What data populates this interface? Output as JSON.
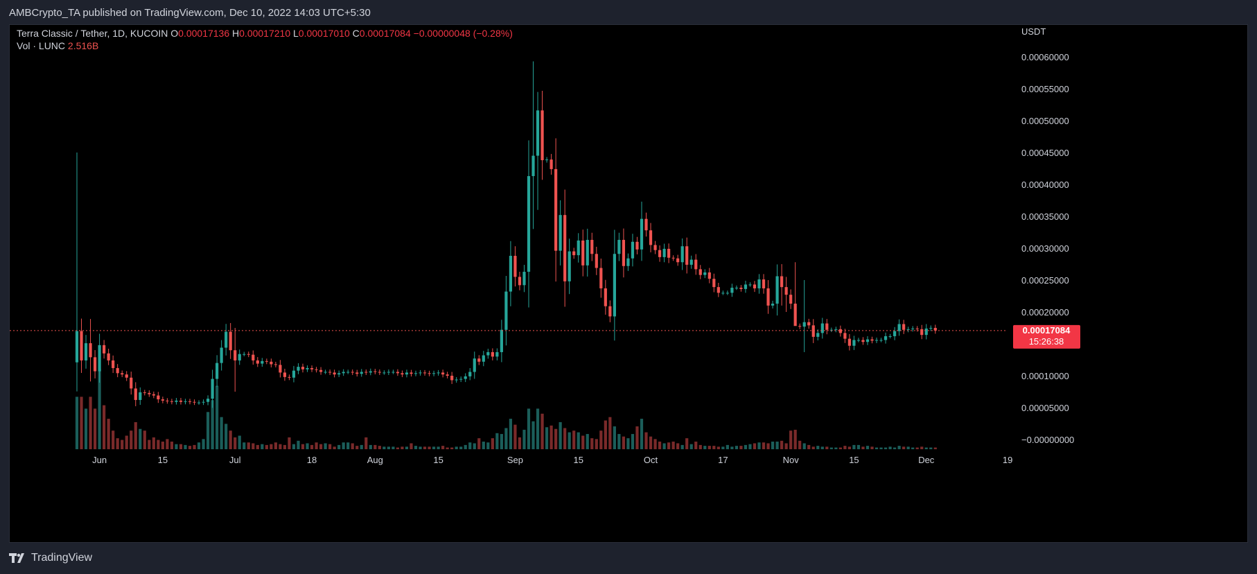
{
  "header": {
    "publisher_text": "AMBCrypto_TA published on TradingView.com, Dec 10, 2022 14:03 UTC+5:30"
  },
  "legend": {
    "symbol": "Terra Classic / Tether, 1D, KUCOIN",
    "o_label": "O",
    "o_value": "0.00017136",
    "h_label": "H",
    "h_value": "0.00017210",
    "l_label": "L",
    "l_value": "0.00017010",
    "c_label": "C",
    "c_value": "0.00017084",
    "change": "−0.00000048 (−0.28%)",
    "vol_label": "Vol · LUNC",
    "vol_value": "2.516B"
  },
  "price_badge": {
    "price": "0.00017084",
    "countdown": "15:26:38"
  },
  "footer": {
    "brand": "TradingView"
  },
  "colors": {
    "up": "#26a69a",
    "down": "#ef5350",
    "up_volume": "#1b5e5a",
    "down_volume": "#7a2a2a",
    "background": "#000000",
    "badge": "#f23645"
  },
  "chart_data": {
    "type": "candlestick",
    "currency_label": "USDT",
    "y_ticks": [
      "0.00060000",
      "0.00055000",
      "0.00050000",
      "0.00045000",
      "0.00040000",
      "0.00035000",
      "0.00030000",
      "0.00025000",
      "0.00020000",
      "0.00010000",
      "0.00005000",
      "−0.00000000"
    ],
    "y_tick_values": [
      0.0006,
      0.00055,
      0.0005,
      0.00045,
      0.0004,
      0.00035,
      0.0003,
      0.00025,
      0.0002,
      0.0001,
      5e-05,
      0.0
    ],
    "ylim": [
      0.0,
      0.00061
    ],
    "x_ticks": [
      {
        "label": "Jun",
        "day": 5
      },
      {
        "label": "15",
        "day": 19
      },
      {
        "label": "Jul",
        "day": 35
      },
      {
        "label": "18",
        "day": 52
      },
      {
        "label": "Aug",
        "day": 66
      },
      {
        "label": "15",
        "day": 80
      },
      {
        "label": "Sep",
        "day": 97
      },
      {
        "label": "15",
        "day": 111
      },
      {
        "label": "Oct",
        "day": 127
      },
      {
        "label": "17",
        "day": 143
      },
      {
        "label": "Nov",
        "day": 158
      },
      {
        "label": "15",
        "day": 172
      },
      {
        "label": "Dec",
        "day": 188
      },
      {
        "label": "19",
        "day": 206
      }
    ],
    "close": [
      0.00017,
      0.000124,
      0.000151,
      0.000129,
      0.000107,
      0.000148,
      0.000135,
      0.000124,
      0.000112,
      0.000104,
      0.000102,
      9.7e-05,
      8e-05,
      6.2e-05,
      7.4e-05,
      7.3e-05,
      7.1e-05,
      6.9e-05,
      6.3e-05,
      6.1e-05,
      6e-05,
      5.9e-05,
      6.1e-05,
      5.9e-05,
      6e-05,
      5.9e-05,
      5.8e-05,
      5.8e-05,
      5.9e-05,
      6.4e-05,
      9.5e-05,
      0.00012,
      0.000144,
      0.000169,
      0.00014,
      0.000124,
      0.000134,
      0.000134,
      0.000133,
      0.000124,
      0.000119,
      0.000123,
      0.000122,
      0.000118,
      0.000117,
      0.000105,
      9.8e-05,
      9.7e-05,
      0.000108,
      0.000114,
      0.00011,
      0.000112,
      0.00011,
      0.000109,
      0.000106,
      0.000106,
      0.000105,
      0.000102,
      0.000104,
      0.000106,
      0.000106,
      0.000105,
      0.000103,
      0.000106,
      0.000105,
      0.000107,
      0.000106,
      0.000105,
      0.000105,
      0.000106,
      0.000106,
      0.000104,
      0.000102,
      0.000105,
      0.000103,
      0.000104,
      0.000105,
      0.000104,
      0.000103,
      0.000104,
      0.000105,
      0.000102,
      0.0001,
      9.3e-05,
      9.4e-05,
      9.5e-05,
      9.9e-05,
      0.000106,
      0.000127,
      0.000122,
      0.000132,
      0.000137,
      0.00013,
      0.000137,
      0.000172,
      0.000232,
      0.000288,
      0.000255,
      0.000242,
      0.000263,
      0.000413,
      0.000445,
      0.000516,
      0.000438,
      0.000439,
      0.000424,
      0.000296,
      0.000352,
      0.000248,
      0.000295,
      0.000289,
      0.000312,
      0.000273,
      0.000313,
      0.000291,
      0.000269,
      0.000237,
      0.000209,
      0.000193,
      0.000291,
      0.000313,
      0.000272,
      0.000284,
      0.00031,
      0.000298,
      0.000346,
      0.000328,
      0.000305,
      0.000297,
      0.000286,
      0.000299,
      0.000285,
      0.000284,
      0.000278,
      0.000303,
      0.000274,
      0.000282,
      0.000267,
      0.000258,
      0.000262,
      0.000252,
      0.000239,
      0.00023,
      0.00023,
      0.00023,
      0.000238,
      0.000238,
      0.000236,
      0.000243,
      0.000243,
      0.000237,
      0.000251,
      0.000237,
      0.00021,
      0.000213,
      0.000256,
      0.000239,
      0.000227,
      0.000213,
      0.000178,
      0.000177,
      0.000184,
      0.000179,
      0.000161,
      0.000167,
      0.000182,
      0.000172,
      0.000172,
      0.000173,
      0.000167,
      0.000158,
      0.000147,
      0.000156,
      0.000156,
      0.000153,
      0.000157,
      0.000155,
      0.000156,
      0.000156,
      0.000162,
      0.000162,
      0.00017,
      0.000181,
      0.000172,
      0.000173,
      0.000174,
      0.000173,
      0.000164,
      0.000174,
      0.000175,
      0.00017084
    ],
    "volume": [
      0.62,
      0.62,
      0.48,
      0.62,
      0.48,
      0.95,
      0.52,
      0.36,
      0.22,
      0.13,
      0.11,
      0.16,
      0.22,
      0.32,
      0.24,
      0.22,
      0.11,
      0.14,
      0.11,
      0.09,
      0.12,
      0.09,
      0.06,
      0.06,
      0.05,
      0.04,
      0.05,
      0.08,
      0.12,
      0.44,
      0.58,
      0.75,
      0.38,
      0.3,
      0.22,
      0.14,
      0.16,
      0.08,
      0.08,
      0.07,
      0.05,
      0.06,
      0.05,
      0.06,
      0.08,
      0.06,
      0.05,
      0.14,
      0.06,
      0.1,
      0.06,
      0.07,
      0.05,
      0.08,
      0.06,
      0.07,
      0.06,
      0.03,
      0.05,
      0.08,
      0.08,
      0.07,
      0.04,
      0.05,
      0.14,
      0.05,
      0.05,
      0.04,
      0.03,
      0.03,
      0.03,
      0.02,
      0.03,
      0.03,
      0.07,
      0.04,
      0.03,
      0.03,
      0.03,
      0.03,
      0.03,
      0.04,
      0.02,
      0.02,
      0.03,
      0.03,
      0.05,
      0.08,
      0.07,
      0.13,
      0.09,
      0.08,
      0.13,
      0.19,
      0.18,
      0.25,
      0.36,
      0.29,
      0.14,
      0.23,
      0.48,
      0.33,
      0.48,
      0.42,
      0.26,
      0.28,
      0.24,
      0.32,
      0.25,
      0.2,
      0.22,
      0.2,
      0.16,
      0.18,
      0.13,
      0.12,
      0.22,
      0.34,
      0.38,
      0.27,
      0.18,
      0.15,
      0.13,
      0.18,
      0.27,
      0.36,
      0.2,
      0.15,
      0.12,
      0.09,
      0.07,
      0.08,
      0.09,
      0.07,
      0.05,
      0.13,
      0.06,
      0.09,
      0.05,
      0.04,
      0.04,
      0.04,
      0.03,
      0.03,
      0.05,
      0.03,
      0.04,
      0.04,
      0.05,
      0.06,
      0.07,
      0.08,
      0.08,
      0.07,
      0.09,
      0.09,
      0.1,
      0.07,
      0.22,
      0.23,
      0.1,
      0.07,
      0.05,
      0.03,
      0.04,
      0.03,
      0.03,
      0.02,
      0.02,
      0.02,
      0.04,
      0.03,
      0.05,
      0.05,
      0.03,
      0.04,
      0.03,
      0.02,
      0.02,
      0.02,
      0.03,
      0.02,
      0.04,
      0.03,
      0.03,
      0.02,
      0.02,
      0.03,
      0.02,
      0.02,
      0.02
    ],
    "volume_unit": "relative",
    "spikes": [
      {
        "day": 0,
        "high": 0.00045,
        "low": 7.54e-05
      },
      {
        "day": 3,
        "high": 0.000189,
        "low": 9.1e-05
      },
      {
        "day": 35,
        "high": 0.000175,
        "low": 7.5e-05
      },
      {
        "day": 101,
        "high": 0.000593,
        "low": 0.00033
      },
      {
        "day": 102,
        "high": 0.000545,
        "low": 0.00036
      },
      {
        "day": 125,
        "high": 0.000373,
        "low": 0.00028
      },
      {
        "day": 159,
        "high": 0.000278,
        "low": 0.00021
      },
      {
        "day": 156,
        "high": 0.000275,
        "low": 0.00021
      },
      {
        "day": 161,
        "high": 0.00025,
        "low": 0.000137
      },
      {
        "day": 157,
        "high": 0.000255,
        "low": 0.0002
      }
    ]
  }
}
